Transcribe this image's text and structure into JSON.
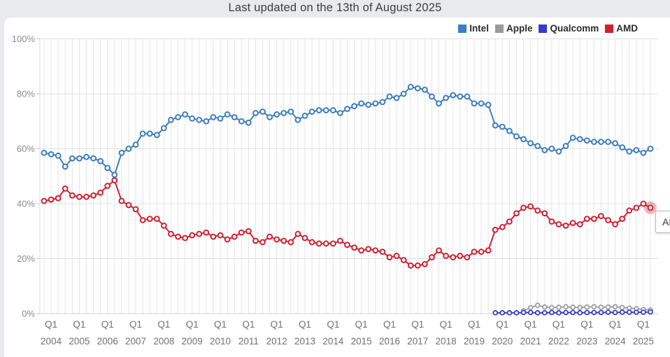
{
  "header": {
    "title": "Last updated on the 13th of August 2025"
  },
  "legend": [
    {
      "label": "Intel",
      "color": "#3c7ebf"
    },
    {
      "label": "Apple",
      "color": "#9b9b9b"
    },
    {
      "label": "Qualcomm",
      "color": "#3939c8"
    },
    {
      "label": "AMD",
      "color": "#cf2030"
    }
  ],
  "tooltip": {
    "text": "AMD"
  },
  "y_axis": {
    "tick_labels": [
      "0%",
      "20%",
      "40%",
      "60%",
      "80%",
      "100%"
    ]
  },
  "x_axis": {
    "quarter_tick_label": "Q1",
    "years": [
      2004,
      2005,
      2006,
      2007,
      2008,
      2009,
      2010,
      2011,
      2012,
      2013,
      2014,
      2015,
      2016,
      2017,
      2018,
      2019,
      2020,
      2021,
      2022,
      2023,
      2024,
      2025
    ]
  },
  "chart_data": {
    "type": "line",
    "title": "Last updated on the 13th of August 2025",
    "xlabel": "",
    "ylabel": "",
    "ylim": [
      0,
      100
    ],
    "grid": true,
    "legend_position": "top-right",
    "x_start": "2003 Q4",
    "x_end": "2025 Q2",
    "x_unit": "quarter",
    "total_quarters": 87,
    "series": [
      {
        "name": "Intel",
        "color": "#3c7ebf",
        "start": "2003 Q4",
        "values": [
          58.5,
          58,
          57.5,
          53.5,
          56.5,
          56.5,
          57,
          56.5,
          55.5,
          53,
          50.5,
          58.5,
          60,
          61.5,
          65.5,
          65.5,
          65,
          67.5,
          70.5,
          71.5,
          72.5,
          71,
          70.5,
          70,
          71.5,
          71,
          72.5,
          71.5,
          70,
          69.5,
          73,
          73.5,
          71.5,
          72.5,
          73,
          73.5,
          70.5,
          72,
          73.5,
          74,
          74,
          74,
          73,
          74.5,
          75.5,
          76.5,
          76,
          76.5,
          77,
          79,
          78.5,
          80,
          82.5,
          82,
          81.5,
          79,
          76.5,
          78.5,
          79.5,
          79,
          79,
          76.5,
          76.5,
          76,
          68.5,
          68,
          66.5,
          64.5,
          63.5,
          62,
          61,
          59.5,
          60,
          59,
          61,
          64,
          63.5,
          63,
          62.5,
          62.5,
          62.5,
          62,
          60.5,
          59,
          59.5,
          58.5,
          60
        ]
      },
      {
        "name": "Apple",
        "color": "#9b9b9b",
        "start": "2020 Q4",
        "values": [
          1,
          2.2,
          3,
          2.4,
          2.2,
          2.3,
          2.5,
          2.3,
          2.2,
          2.4,
          2.5,
          2.3,
          2.4,
          2.5,
          2.2,
          2,
          1.8,
          1.5,
          1.3
        ]
      },
      {
        "name": "Qualcomm",
        "color": "#3939c8",
        "start": "2019 Q4",
        "values": [
          0.3,
          0.3,
          0.3,
          0.3,
          0.4,
          0.4,
          0.3,
          0.3,
          0.4,
          0.3,
          0.4,
          0.4,
          0.3,
          0.4,
          0.4,
          0.4,
          0.5,
          0.4,
          0.5,
          0.5,
          0.5,
          0.5,
          0.6
        ]
      },
      {
        "name": "AMD",
        "color": "#cf2030",
        "start": "2003 Q4",
        "highlight_last": true,
        "values": [
          41,
          41.5,
          42,
          45.5,
          43,
          42.5,
          42.5,
          43,
          44,
          46.5,
          48.5,
          41,
          39.5,
          38,
          34,
          34.5,
          34.5,
          32,
          29,
          28,
          27.5,
          28.5,
          29,
          29.5,
          28,
          28.5,
          27,
          28,
          29.5,
          30,
          26.5,
          26,
          28,
          27,
          26.5,
          26,
          29,
          27.5,
          26,
          25.5,
          25.5,
          25.5,
          26.5,
          25,
          24,
          23,
          23.5,
          23,
          22.5,
          20.5,
          21,
          19.5,
          17.5,
          17.5,
          18,
          20.5,
          23,
          21,
          20.5,
          21,
          20.5,
          22.5,
          22.5,
          23,
          30.5,
          31.5,
          33.5,
          36.5,
          38.5,
          39,
          37.5,
          36.5,
          33.5,
          32.5,
          32,
          33,
          32.5,
          34.5,
          34.5,
          35.5,
          34,
          32.5,
          34.5,
          37.5,
          38.5,
          40,
          38.5
        ]
      }
    ]
  }
}
